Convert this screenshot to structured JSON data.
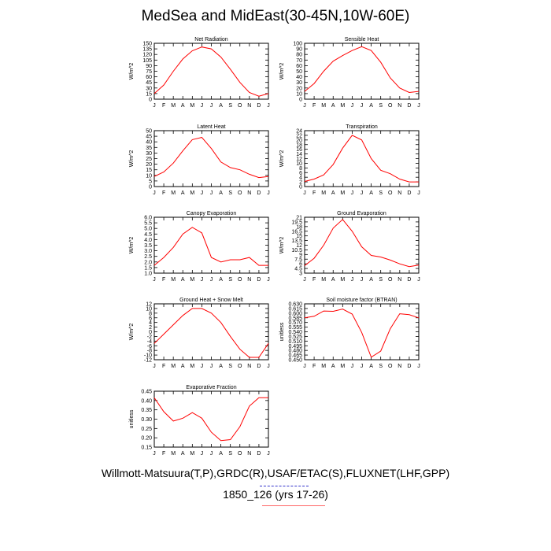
{
  "title": "MedSea and MidEast(30-45N,10W-60E)",
  "caption_line1": "Willmott-Matsuura(T,P),GRDC(R),USAF/ETAC(S),FLUXNET(LHF,GPP)",
  "caption_line2": "1850_126 (yrs 17-26)",
  "colors": {
    "series": "#ff0000",
    "axis": "#000000",
    "underline_blue": "#3333cc",
    "underline_red": "#ff6666"
  },
  "chart_data": [
    {
      "type": "line",
      "title": "Net Radiation",
      "ylabel": "W/m^2",
      "x": [
        "J",
        "F",
        "M",
        "A",
        "M",
        "J",
        "J",
        "A",
        "S",
        "O",
        "N",
        "D",
        "J"
      ],
      "ylim": [
        0,
        150
      ],
      "yticks": [
        "0",
        "15",
        "30",
        "45",
        "60",
        "75",
        "90",
        "105",
        "120",
        "135",
        "150"
      ],
      "series": [
        {
          "values": [
            15,
            38,
            75,
            108,
            130,
            140,
            135,
            113,
            80,
            45,
            18,
            8,
            15
          ]
        }
      ]
    },
    {
      "type": "line",
      "title": "Sensible Heat",
      "ylabel": "W/m^2",
      "x": [
        "J",
        "F",
        "M",
        "A",
        "M",
        "J",
        "J",
        "A",
        "S",
        "O",
        "N",
        "D",
        "J"
      ],
      "ylim": [
        0,
        100
      ],
      "yticks": [
        "0",
        "10",
        "20",
        "30",
        "40",
        "50",
        "60",
        "70",
        "80",
        "90",
        "100"
      ],
      "series": [
        {
          "values": [
            14,
            28,
            50,
            68,
            78,
            87,
            94,
            87,
            66,
            38,
            20,
            12,
            14
          ]
        }
      ]
    },
    {
      "type": "line",
      "title": "Latent Heat",
      "ylabel": "W/m^2",
      "x": [
        "J",
        "F",
        "M",
        "A",
        "M",
        "J",
        "J",
        "A",
        "S",
        "O",
        "N",
        "D",
        "J"
      ],
      "ylim": [
        0,
        50
      ],
      "yticks": [
        "0",
        "5",
        "10",
        "15",
        "20",
        "25",
        "30",
        "35",
        "40",
        "45",
        "50"
      ],
      "series": [
        {
          "values": [
            9,
            13,
            21,
            32,
            42,
            44,
            34,
            22,
            17,
            15,
            11,
            8,
            9
          ]
        }
      ]
    },
    {
      "type": "line",
      "title": "Transpiration",
      "ylabel": "W/m^2",
      "x": [
        "J",
        "F",
        "M",
        "A",
        "M",
        "J",
        "J",
        "A",
        "S",
        "O",
        "N",
        "D",
        "J"
      ],
      "ylim": [
        0,
        24
      ],
      "yticks": [
        "0",
        "2",
        "4",
        "6",
        "8",
        "10",
        "12",
        "14",
        "16",
        "18",
        "20",
        "22",
        "24"
      ],
      "series": [
        {
          "values": [
            2.2,
            3.2,
            5,
            9.5,
            16.5,
            22,
            20,
            12,
            7,
            5.5,
            3.2,
            2,
            2
          ]
        }
      ]
    },
    {
      "type": "line",
      "title": "Canopy Evaporation",
      "ylabel": "W/m^2",
      "x": [
        "J",
        "F",
        "M",
        "A",
        "M",
        "J",
        "J",
        "A",
        "S",
        "O",
        "N",
        "D",
        "J"
      ],
      "ylim": [
        1.0,
        6.0
      ],
      "yticks": [
        "1.0",
        "1.5",
        "2.0",
        "2.5",
        "3.0",
        "3.5",
        "4.0",
        "4.5",
        "5.0",
        "5.5",
        "6.0"
      ],
      "series": [
        {
          "values": [
            1.7,
            2.4,
            3.3,
            4.5,
            5.1,
            4.6,
            2.4,
            2.0,
            2.2,
            2.2,
            2.4,
            1.7,
            1.7
          ]
        }
      ]
    },
    {
      "type": "line",
      "title": "Ground Evaporation",
      "ylabel": "W/m^2",
      "x": [
        "J",
        "F",
        "M",
        "A",
        "M",
        "J",
        "J",
        "A",
        "S",
        "O",
        "N",
        "D",
        "J"
      ],
      "ylim": [
        3,
        21
      ],
      "yticks": [
        "3",
        "4.5",
        "6",
        "7.5",
        "9",
        "10.5",
        "12",
        "13.5",
        "15",
        "16.5",
        "18",
        "19.5",
        "21"
      ],
      "series": [
        {
          "values": [
            5.4,
            7.8,
            12,
            17.5,
            20.3,
            16.5,
            11.5,
            8.7,
            8.2,
            7.2,
            6,
            5.1,
            5.6
          ]
        }
      ]
    },
    {
      "type": "line",
      "title": "Ground Heat + Snow Melt",
      "ylabel": "W/m^2",
      "x": [
        "J",
        "F",
        "M",
        "A",
        "M",
        "J",
        "J",
        "A",
        "S",
        "O",
        "N",
        "D",
        "J"
      ],
      "ylim": [
        -12,
        12
      ],
      "yticks": [
        "-12",
        "-10",
        "-8",
        "-6",
        "-4",
        "-2",
        "0",
        "2",
        "4",
        "6",
        "8",
        "10",
        "12"
      ],
      "series": [
        {
          "values": [
            -5,
            -1,
            3,
            7,
            10,
            10,
            8,
            4,
            -2,
            -7.5,
            -11,
            -11,
            -5
          ]
        }
      ]
    },
    {
      "type": "line",
      "title": "Soil moisture factor (BTRAN)",
      "ylabel": "unitless",
      "x": [
        "J",
        "F",
        "M",
        "A",
        "M",
        "J",
        "J",
        "A",
        "S",
        "O",
        "N",
        "D",
        "J"
      ],
      "ylim": [
        0.45,
        0.63
      ],
      "yticks": [
        "0.450",
        "0.465",
        "0.480",
        "0.495",
        "0.510",
        "0.525",
        "0.540",
        "0.555",
        "0.570",
        "0.585",
        "0.600",
        "0.615",
        "0.630"
      ],
      "series": [
        {
          "values": [
            0.585,
            0.59,
            0.607,
            0.606,
            0.613,
            0.597,
            0.538,
            0.458,
            0.478,
            0.55,
            0.598,
            0.595,
            0.585
          ]
        }
      ]
    },
    {
      "type": "line",
      "title": "Evaporative Fraction",
      "ylabel": "unitless",
      "x": [
        "J",
        "F",
        "M",
        "A",
        "M",
        "J",
        "J",
        "A",
        "S",
        "O",
        "N",
        "D",
        "J"
      ],
      "ylim": [
        0.15,
        0.45
      ],
      "yticks": [
        "0.15",
        "0.20",
        "0.25",
        "0.30",
        "0.35",
        "0.40",
        "0.45"
      ],
      "series": [
        {
          "values": [
            0.415,
            0.34,
            0.29,
            0.305,
            0.335,
            0.305,
            0.23,
            0.185,
            0.19,
            0.26,
            0.37,
            0.415,
            0.415
          ]
        }
      ]
    }
  ]
}
